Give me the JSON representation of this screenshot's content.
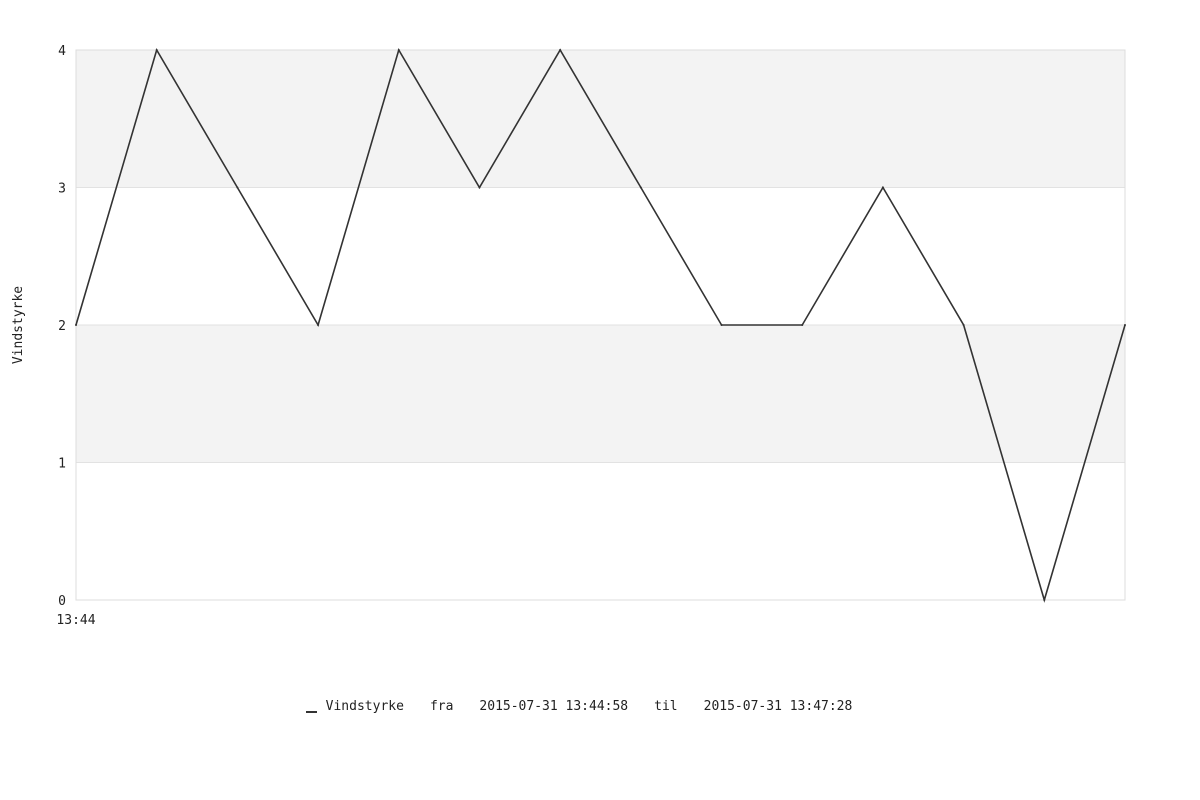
{
  "chart_data": {
    "type": "line",
    "ylabel": "Vindstyrke",
    "xlabel": "",
    "ylim": [
      0,
      4
    ],
    "yticks": [
      "0",
      "1",
      "2",
      "3",
      "4"
    ],
    "xtick_labels": [
      "13:44"
    ],
    "grid": "alternating bands",
    "band_color": "#f3f3f3",
    "line_color": "#333333",
    "series": [
      {
        "name": "Vindstyrke",
        "values": [
          2,
          4,
          3,
          2,
          4,
          3,
          4,
          3,
          2,
          2,
          3,
          2,
          0,
          2
        ]
      }
    ]
  },
  "legend": {
    "series_name": "Vindstyrke",
    "from_word": "fra",
    "from_time": "2015-07-31 13:44:58",
    "to_word": "til",
    "to_time": "2015-07-31 13:47:28"
  }
}
